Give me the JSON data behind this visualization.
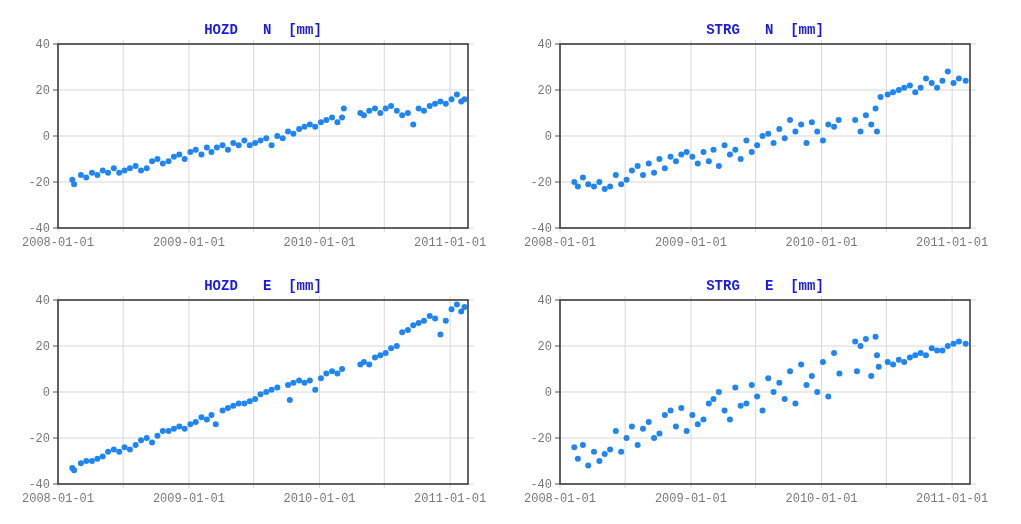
{
  "chart_data": [
    {
      "type": "scatter",
      "title": "HOZD   N  [mm]",
      "color": "#1f85f2",
      "marker": "circle",
      "grid": true,
      "xlim": [
        "2008-01-01",
        "2011-02-20"
      ],
      "ylim": [
        -40,
        40
      ],
      "yticks": [
        -40,
        -20,
        0,
        20,
        40
      ],
      "xticks": [
        "2008-01-01",
        {
          "value": "2008-07-01",
          "label": null
        },
        "2009-01-01",
        {
          "value": "2009-07-01",
          "label": null
        },
        "2010-01-01",
        {
          "value": "2010-07-01",
          "label": null
        },
        "2011-01-01"
      ],
      "x": [
        "2008-02-10",
        "2008-02-15",
        "2008-03-05",
        "2008-03-20",
        "2008-04-05",
        "2008-04-20",
        "2008-05-05",
        "2008-05-20",
        "2008-06-05",
        "2008-06-20",
        "2008-07-05",
        "2008-07-20",
        "2008-08-05",
        "2008-08-20",
        "2008-09-05",
        "2008-09-20",
        "2008-10-05",
        "2008-10-20",
        "2008-11-05",
        "2008-11-20",
        "2008-12-05",
        "2008-12-20",
        "2009-01-05",
        "2009-01-20",
        "2009-02-05",
        "2009-02-20",
        "2009-03-05",
        "2009-03-20",
        "2009-04-05",
        "2009-04-20",
        "2009-05-05",
        "2009-05-20",
        "2009-06-05",
        "2009-06-20",
        "2009-07-05",
        "2009-07-20",
        "2009-08-05",
        "2009-08-20",
        "2009-09-05",
        "2009-09-20",
        "2009-10-05",
        "2009-10-20",
        "2009-11-05",
        "2009-11-20",
        "2009-12-05",
        "2009-12-20",
        "2010-01-05",
        "2010-01-20",
        "2010-02-05",
        "2010-02-20",
        "2010-03-05",
        "2010-03-10",
        "2010-04-25",
        "2010-05-05",
        "2010-05-20",
        "2010-06-05",
        "2010-06-20",
        "2010-07-05",
        "2010-07-20",
        "2010-08-05",
        "2010-08-20",
        "2010-09-05",
        "2010-09-20",
        "2010-10-05",
        "2010-10-20",
        "2010-11-05",
        "2010-11-20",
        "2010-12-05",
        "2010-12-20",
        "2011-01-05",
        "2011-01-20",
        "2011-02-01",
        "2011-02-10"
      ],
      "values": [
        -19,
        -21,
        -17,
        -18,
        -16,
        -17,
        -15,
        -16,
        -14,
        -16,
        -15,
        -14,
        -13,
        -15,
        -14,
        -11,
        -10,
        -12,
        -11,
        -9,
        -8,
        -10,
        -7,
        -6,
        -8,
        -5,
        -7,
        -5,
        -4,
        -6,
        -3,
        -4,
        -2,
        -4,
        -3,
        -2,
        -1,
        -4,
        0,
        -1,
        2,
        1,
        3,
        4,
        5,
        4,
        6,
        7,
        8,
        6,
        8,
        12,
        10,
        9,
        11,
        12,
        10,
        12,
        13,
        11,
        9,
        10,
        5,
        12,
        11,
        13,
        14,
        15,
        14,
        16,
        18,
        15,
        16
      ]
    },
    {
      "type": "scatter",
      "title": "STRG   N  [mm]",
      "color": "#1f85f2",
      "marker": "circle",
      "grid": true,
      "xlim": [
        "2008-01-01",
        "2011-02-20"
      ],
      "ylim": [
        -40,
        40
      ],
      "yticks": [
        -40,
        -20,
        0,
        20,
        40
      ],
      "xticks": [
        "2008-01-01",
        {
          "value": "2008-07-01",
          "label": null
        },
        "2009-01-01",
        {
          "value": "2009-07-01",
          "label": null
        },
        "2010-01-01",
        {
          "value": "2010-07-01",
          "label": null
        },
        "2011-01-01"
      ],
      "x": [
        "2008-02-10",
        "2008-02-20",
        "2008-03-05",
        "2008-03-20",
        "2008-04-05",
        "2008-04-20",
        "2008-05-05",
        "2008-05-20",
        "2008-06-05",
        "2008-06-20",
        "2008-07-05",
        "2008-07-20",
        "2008-08-05",
        "2008-08-20",
        "2008-09-05",
        "2008-09-20",
        "2008-10-05",
        "2008-10-20",
        "2008-11-05",
        "2008-11-20",
        "2008-12-05",
        "2008-12-20",
        "2009-01-05",
        "2009-01-20",
        "2009-02-05",
        "2009-02-20",
        "2009-03-05",
        "2009-03-20",
        "2009-04-05",
        "2009-04-20",
        "2009-05-05",
        "2009-05-20",
        "2009-06-05",
        "2009-06-20",
        "2009-07-05",
        "2009-07-20",
        "2009-08-05",
        "2009-08-20",
        "2009-09-05",
        "2009-09-20",
        "2009-10-05",
        "2009-10-20",
        "2009-11-05",
        "2009-11-20",
        "2009-12-05",
        "2009-12-20",
        "2010-01-05",
        "2010-01-20",
        "2010-02-05",
        "2010-02-18",
        "2010-04-05",
        "2010-04-20",
        "2010-05-05",
        "2010-05-20",
        "2010-06-01",
        "2010-06-05",
        "2010-06-15",
        "2010-07-05",
        "2010-07-20",
        "2010-08-05",
        "2010-08-20",
        "2010-09-05",
        "2010-09-20",
        "2010-10-05",
        "2010-10-20",
        "2010-11-05",
        "2010-11-20",
        "2010-12-05",
        "2010-12-20",
        "2011-01-05",
        "2011-01-20",
        "2011-02-08"
      ],
      "values": [
        -20,
        -22,
        -18,
        -21,
        -22,
        -20,
        -23,
        -22,
        -17,
        -21,
        -19,
        -15,
        -13,
        -17,
        -12,
        -16,
        -10,
        -14,
        -9,
        -11,
        -8,
        -7,
        -9,
        -12,
        -7,
        -11,
        -6,
        -13,
        -4,
        -8,
        -6,
        -10,
        -2,
        -7,
        -4,
        0,
        1,
        -3,
        3,
        -1,
        7,
        2,
        5,
        -3,
        6,
        2,
        -2,
        5,
        4,
        7,
        7,
        2,
        9,
        5,
        12,
        2,
        17,
        18,
        19,
        20,
        21,
        22,
        19,
        21,
        25,
        23,
        21,
        24,
        28,
        23,
        25,
        24
      ]
    },
    {
      "type": "scatter",
      "title": "HOZD   E  [mm]",
      "color": "#1f85f2",
      "marker": "circle",
      "grid": true,
      "xlim": [
        "2008-01-01",
        "2011-02-20"
      ],
      "ylim": [
        -40,
        40
      ],
      "yticks": [
        -40,
        -20,
        0,
        20,
        40
      ],
      "xticks": [
        "2008-01-01",
        {
          "value": "2008-07-01",
          "label": null
        },
        "2009-01-01",
        {
          "value": "2009-07-01",
          "label": null
        },
        "2010-01-01",
        {
          "value": "2010-07-01",
          "label": null
        },
        "2011-01-01"
      ],
      "x": [
        "2008-02-10",
        "2008-02-15",
        "2008-03-05",
        "2008-03-20",
        "2008-04-05",
        "2008-04-20",
        "2008-05-05",
        "2008-05-20",
        "2008-06-05",
        "2008-06-20",
        "2008-07-05",
        "2008-07-20",
        "2008-08-05",
        "2008-08-20",
        "2008-09-05",
        "2008-09-20",
        "2008-10-05",
        "2008-10-20",
        "2008-11-05",
        "2008-11-20",
        "2008-12-05",
        "2008-12-20",
        "2009-01-05",
        "2009-01-20",
        "2009-02-05",
        "2009-02-20",
        "2009-03-05",
        "2009-03-17",
        "2009-04-05",
        "2009-04-20",
        "2009-05-05",
        "2009-05-20",
        "2009-06-05",
        "2009-06-20",
        "2009-07-05",
        "2009-07-20",
        "2009-08-05",
        "2009-08-20",
        "2009-09-05",
        "2009-10-10",
        "2009-10-05",
        "2009-10-20",
        "2009-11-05",
        "2009-11-20",
        "2009-12-05",
        "2009-12-20",
        "2010-01-05",
        "2010-01-20",
        "2010-02-05",
        "2010-02-20",
        "2010-03-05",
        "2010-04-25",
        "2010-05-05",
        "2010-05-20",
        "2010-06-05",
        "2010-06-20",
        "2010-07-05",
        "2010-07-20",
        "2010-08-05",
        "2010-08-20",
        "2010-09-05",
        "2010-09-20",
        "2010-10-05",
        "2010-10-20",
        "2010-11-05",
        "2010-11-20",
        "2010-12-05",
        "2010-12-20",
        "2011-01-05",
        "2011-01-20",
        "2011-02-01",
        "2011-02-10"
      ],
      "values": [
        -33,
        -34,
        -31,
        -30,
        -30,
        -29,
        -28,
        -26,
        -25,
        -26,
        -24,
        -25,
        -23,
        -21,
        -20,
        -22,
        -19,
        -17,
        -17,
        -16,
        -15,
        -16,
        -14,
        -13,
        -11,
        -12,
        -10,
        -14,
        -8,
        -7,
        -6,
        -5,
        -5,
        -4,
        -3,
        -1,
        0,
        1,
        2,
        -3.5,
        3,
        4,
        5,
        4,
        5,
        1,
        6,
        8,
        9,
        8,
        10,
        12,
        13,
        12,
        15,
        16,
        17,
        19,
        20,
        26,
        27,
        29,
        30,
        31,
        33,
        32,
        25,
        31,
        36,
        38,
        35,
        37
      ]
    },
    {
      "type": "scatter",
      "title": "STRG   E  [mm]",
      "color": "#1f85f2",
      "marker": "circle",
      "grid": true,
      "xlim": [
        "2008-01-01",
        "2011-02-20"
      ],
      "ylim": [
        -40,
        40
      ],
      "yticks": [
        -40,
        -20,
        0,
        20,
        40
      ],
      "xticks": [
        "2008-01-01",
        {
          "value": "2008-07-01",
          "label": null
        },
        "2009-01-01",
        {
          "value": "2009-07-01",
          "label": null
        },
        "2010-01-01",
        {
          "value": "2010-07-01",
          "label": null
        },
        "2011-01-01"
      ],
      "x": [
        "2008-02-10",
        "2008-02-20",
        "2008-03-05",
        "2008-03-20",
        "2008-04-05",
        "2008-04-20",
        "2008-05-05",
        "2008-05-20",
        "2008-06-05",
        "2008-06-20",
        "2008-07-05",
        "2008-07-20",
        "2008-08-05",
        "2008-08-20",
        "2008-09-05",
        "2008-09-20",
        "2008-10-05",
        "2008-10-20",
        "2008-11-05",
        "2008-11-20",
        "2008-12-05",
        "2008-12-20",
        "2009-01-05",
        "2009-01-20",
        "2009-02-05",
        "2009-02-20",
        "2009-03-05",
        "2009-03-20",
        "2009-04-05",
        "2009-04-20",
        "2009-05-05",
        "2009-05-20",
        "2009-06-05",
        "2009-06-20",
        "2009-07-05",
        "2009-07-20",
        "2009-08-05",
        "2009-08-20",
        "2009-09-05",
        "2009-09-20",
        "2009-10-05",
        "2009-10-20",
        "2009-11-05",
        "2009-11-20",
        "2009-12-05",
        "2009-12-20",
        "2010-01-05",
        "2010-01-20",
        "2010-02-05",
        "2010-02-20",
        "2010-04-05",
        "2010-04-10",
        "2010-04-20",
        "2010-05-05",
        "2010-05-20",
        "2010-06-01",
        "2010-06-05",
        "2010-06-10",
        "2010-07-05",
        "2010-07-20",
        "2010-08-05",
        "2010-08-20",
        "2010-09-05",
        "2010-09-20",
        "2010-10-05",
        "2010-10-20",
        "2010-11-05",
        "2010-11-20",
        "2010-12-05",
        "2010-12-20",
        "2011-01-05",
        "2011-01-20",
        "2011-02-08"
      ],
      "values": [
        -24,
        -29,
        -23,
        -32,
        -26,
        -30,
        -27,
        -25,
        -17,
        -26,
        -20,
        -15,
        -23,
        -16,
        -13,
        -20,
        -18,
        -10,
        -8,
        -15,
        -7,
        -17,
        -10,
        -14,
        -12,
        -5,
        -3,
        0,
        -8,
        -12,
        2,
        -6,
        -5,
        3,
        -2,
        -8,
        6,
        0,
        4,
        -3,
        9,
        -5,
        12,
        3,
        7,
        0,
        13,
        -2,
        17,
        8,
        22,
        9,
        20,
        23,
        7,
        24,
        16,
        11,
        13,
        12,
        14,
        13,
        15,
        16,
        17,
        16,
        19,
        18,
        18,
        20,
        21,
        22,
        21
      ]
    }
  ]
}
